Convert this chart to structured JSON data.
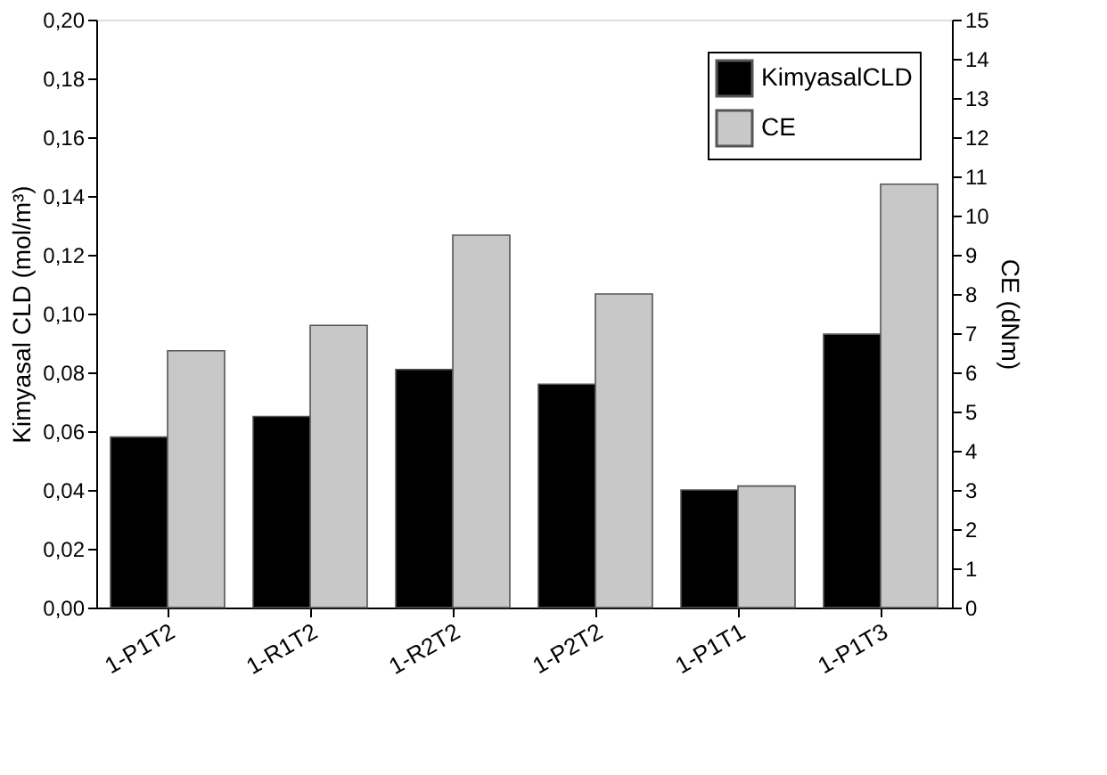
{
  "chart_data": {
    "type": "bar",
    "categories": [
      "1-P1T2",
      "1-R1T2",
      "1-R2T2",
      "1-P2T2",
      "1-P1T1",
      "1-P1T3"
    ],
    "ylabel": "Kimyasal CLD (mol/m³)",
    "y2label": "CE (dNm)",
    "series": [
      {
        "name": "KimyasalCLD",
        "color": "#000000",
        "values": [
          0.058,
          0.065,
          0.081,
          0.076,
          0.04,
          0.093
        ]
      },
      {
        "name": "CE",
        "color": "#c8c8c8",
        "axis": "y2",
        "values": [
          6.55,
          7.2,
          9.5,
          8.0,
          3.1,
          10.8
        ]
      }
    ],
    "ylim": [
      0,
      0.2
    ],
    "yticks": [
      {
        "value": 0,
        "label": "0,00"
      },
      {
        "value": 0.02,
        "label": "0,02"
      },
      {
        "value": 0.04,
        "label": "0,04"
      },
      {
        "value": 0.06,
        "label": "0,06"
      },
      {
        "value": 0.08,
        "label": "0,08"
      },
      {
        "value": 0.1,
        "label": "0,10"
      },
      {
        "value": 0.12,
        "label": "0,12"
      },
      {
        "value": 0.14,
        "label": "0,14"
      },
      {
        "value": 0.16,
        "label": "0,16"
      },
      {
        "value": 0.18,
        "label": "0,18"
      },
      {
        "value": 0.2,
        "label": "0,20"
      }
    ],
    "y2lim": [
      0,
      15
    ],
    "y2ticks": [
      0,
      1,
      2,
      3,
      4,
      5,
      6,
      7,
      8,
      9,
      10,
      11,
      12,
      13,
      14,
      15
    ],
    "legend": "top right",
    "grid": false
  }
}
